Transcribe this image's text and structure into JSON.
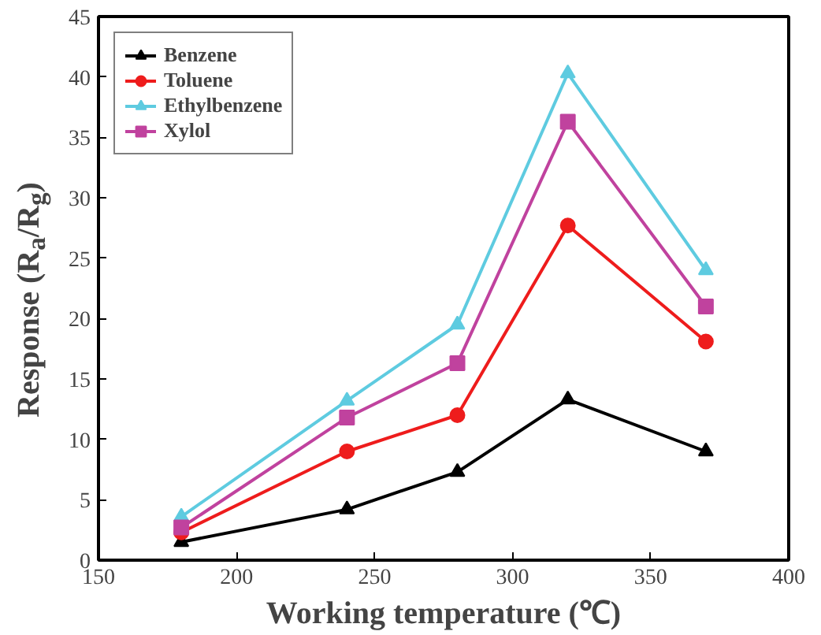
{
  "chart_data": {
    "type": "line",
    "xlabel": "Working temperature (℃)",
    "ylabel": "Response (R$_{a}$/R$_{g}$)",
    "x": [
      180,
      240,
      280,
      320,
      370
    ],
    "series": [
      {
        "name": "Benzene",
        "color": "#000000",
        "marker": "triangle",
        "values": [
          1.5,
          4.2,
          7.3,
          13.3,
          9.0
        ]
      },
      {
        "name": "Toluene",
        "color": "#ee1c1c",
        "marker": "circle",
        "values": [
          2.3,
          9.0,
          12.0,
          27.7,
          18.1
        ]
      },
      {
        "name": "Ethylbenzene",
        "color": "#5ecbe0",
        "marker": "triangle",
        "values": [
          3.6,
          13.2,
          19.5,
          40.3,
          24.0
        ]
      },
      {
        "name": "Xylol",
        "color": "#c0429e",
        "marker": "square",
        "values": [
          2.7,
          11.8,
          16.3,
          36.3,
          21.0
        ]
      }
    ],
    "xlim": [
      150,
      400
    ],
    "xticks": [
      150,
      200,
      250,
      300,
      350,
      400
    ],
    "ylim": [
      0,
      45
    ],
    "yticks": [
      0,
      5,
      10,
      15,
      20,
      25,
      30,
      35,
      40,
      45
    ],
    "grid": false,
    "legend": "top left",
    "line_style": "solid"
  }
}
